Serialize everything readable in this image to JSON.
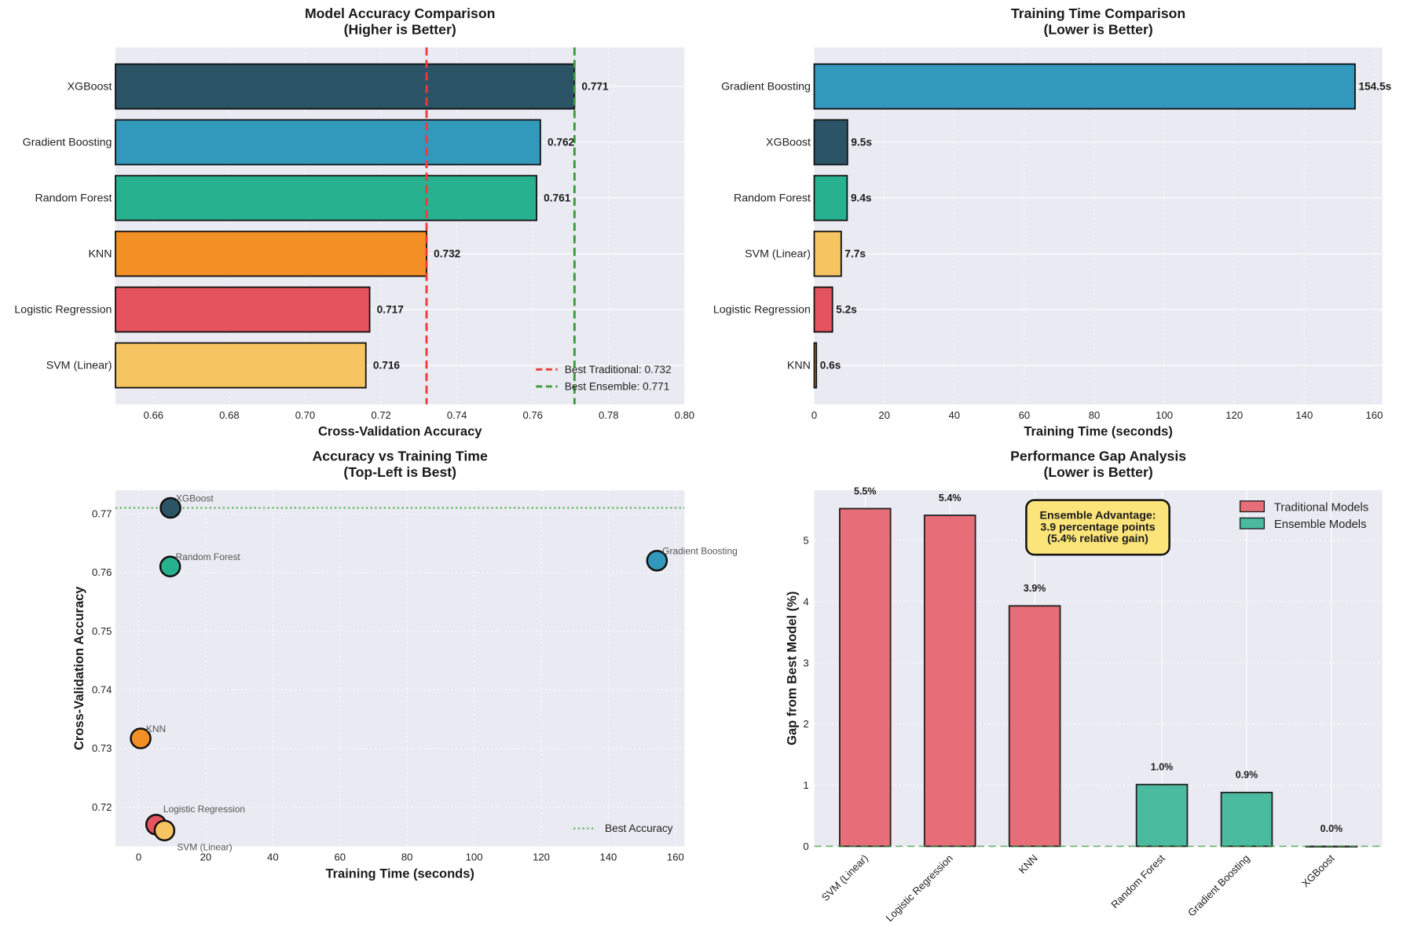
{
  "chart_data": [
    {
      "type": "bar",
      "orientation": "horizontal",
      "title": [
        "Model Accuracy Comparison",
        "(Higher is Better)"
      ],
      "xlabel": "Cross-Validation Accuracy",
      "ylabel": "",
      "xlim": [
        0.65,
        0.8
      ],
      "xticks": [
        0.66,
        0.68,
        0.7,
        0.72,
        0.74,
        0.76,
        0.78,
        0.8
      ],
      "categories": [
        "XGBoost",
        "Gradient Boosting",
        "Random Forest",
        "KNN",
        "Logistic Regression",
        "SVM (Linear)"
      ],
      "values": [
        0.771,
        0.762,
        0.761,
        0.732,
        0.717,
        0.716
      ],
      "labels": [
        "0.771",
        "0.762",
        "0.761",
        "0.732",
        "0.717",
        "0.716"
      ],
      "colors": [
        "#2b5466",
        "#3399bc",
        "#27b18e",
        "#f39025",
        "#e5535f",
        "#f7c462"
      ],
      "reference_lines": [
        {
          "label": "Best Traditional: 0.732",
          "value": 0.732,
          "color": "#f03a3a"
        },
        {
          "label": "Best Ensemble: 0.771",
          "value": 0.771,
          "color": "#3a9a3a"
        }
      ],
      "legend": "bottom-right",
      "grid": true
    },
    {
      "type": "bar",
      "orientation": "horizontal",
      "title": [
        "Training Time Comparison",
        "(Lower is Better)"
      ],
      "xlabel": "Training Time (seconds)",
      "xlim": [
        0,
        162.3
      ],
      "xticks": [
        0,
        20,
        40,
        60,
        80,
        100,
        120,
        140,
        160
      ],
      "categories": [
        "Gradient Boosting",
        "XGBoost",
        "Random Forest",
        "SVM (Linear)",
        "Logistic Regression",
        "KNN"
      ],
      "values": [
        154.5,
        9.5,
        9.4,
        7.7,
        5.2,
        0.6
      ],
      "labels": [
        "154.5s",
        "9.5s",
        "9.4s",
        "7.7s",
        "5.2s",
        "0.6s"
      ],
      "colors": [
        "#3399bc",
        "#2b5466",
        "#27b18e",
        "#f7c462",
        "#e5535f",
        "#f39025"
      ],
      "grid": true
    },
    {
      "type": "scatter",
      "title": [
        "Accuracy vs Training Time",
        "(Top-Left is Best)"
      ],
      "xlabel": "Training Time (seconds)",
      "ylabel": "Cross-Validation Accuracy",
      "xlim": [
        -6.9,
        162.7
      ],
      "ylim": [
        0.7133,
        0.774
      ],
      "xticks": [
        0,
        20,
        40,
        60,
        80,
        100,
        120,
        140,
        160
      ],
      "yticks": [
        0.72,
        0.73,
        0.74,
        0.75,
        0.76,
        0.77
      ],
      "points": [
        {
          "name": "XGBoost",
          "x": 9.5,
          "y": 0.771,
          "color": "#2b5466"
        },
        {
          "name": "Random Forest",
          "x": 9.4,
          "y": 0.761,
          "color": "#27b18e"
        },
        {
          "name": "Gradient Boosting",
          "x": 154.5,
          "y": 0.762,
          "color": "#3399bc"
        },
        {
          "name": "KNN",
          "x": 0.6,
          "y": 0.7317,
          "color": "#f39025"
        },
        {
          "name": "Logistic Regression",
          "x": 5.2,
          "y": 0.717,
          "color": "#e5535f"
        },
        {
          "name": "SVM (Linear)",
          "x": 7.7,
          "y": 0.716,
          "color": "#f7c462"
        }
      ],
      "reference_lines": [
        {
          "label": "Best Accuracy",
          "value": 0.771,
          "color": "#5cb85c"
        }
      ],
      "legend": "bottom-right",
      "grid": true
    },
    {
      "type": "bar",
      "title": [
        "Performance Gap Analysis",
        "(Lower is Better)"
      ],
      "xlabel": "",
      "ylabel": "Gap from Best Model (%)",
      "xlim": [
        -0.6,
        6.1
      ],
      "ylim": [
        0,
        5.82
      ],
      "yticks": [
        0,
        1,
        2,
        3,
        4,
        5
      ],
      "categories": [
        "SVM (Linear)",
        "Logistic Regression",
        "KNN",
        "Random Forest",
        "Gradient Boosting",
        "XGBoost"
      ],
      "positions": [
        0,
        1,
        2,
        3.5,
        4.5,
        5.5
      ],
      "values": [
        5.52,
        5.41,
        3.93,
        1.01,
        0.88,
        0.0
      ],
      "labels": [
        "5.5%",
        "5.4%",
        "3.9%",
        "1.0%",
        "0.9%",
        "0.0%"
      ],
      "groups": [
        "Traditional Models",
        "Traditional Models",
        "Traditional Models",
        "Ensemble Models",
        "Ensemble Models",
        "Ensemble Models"
      ],
      "legend_entries": [
        {
          "label": "Traditional Models",
          "color": "#e76e78"
        },
        {
          "label": "Ensemble Models",
          "color": "#4abb9f"
        }
      ],
      "annotation": [
        "Ensemble Advantage:",
        "3.9 percentage points",
        "(5.4% relative gain)"
      ],
      "legend": "top-right",
      "grid": true
    }
  ]
}
